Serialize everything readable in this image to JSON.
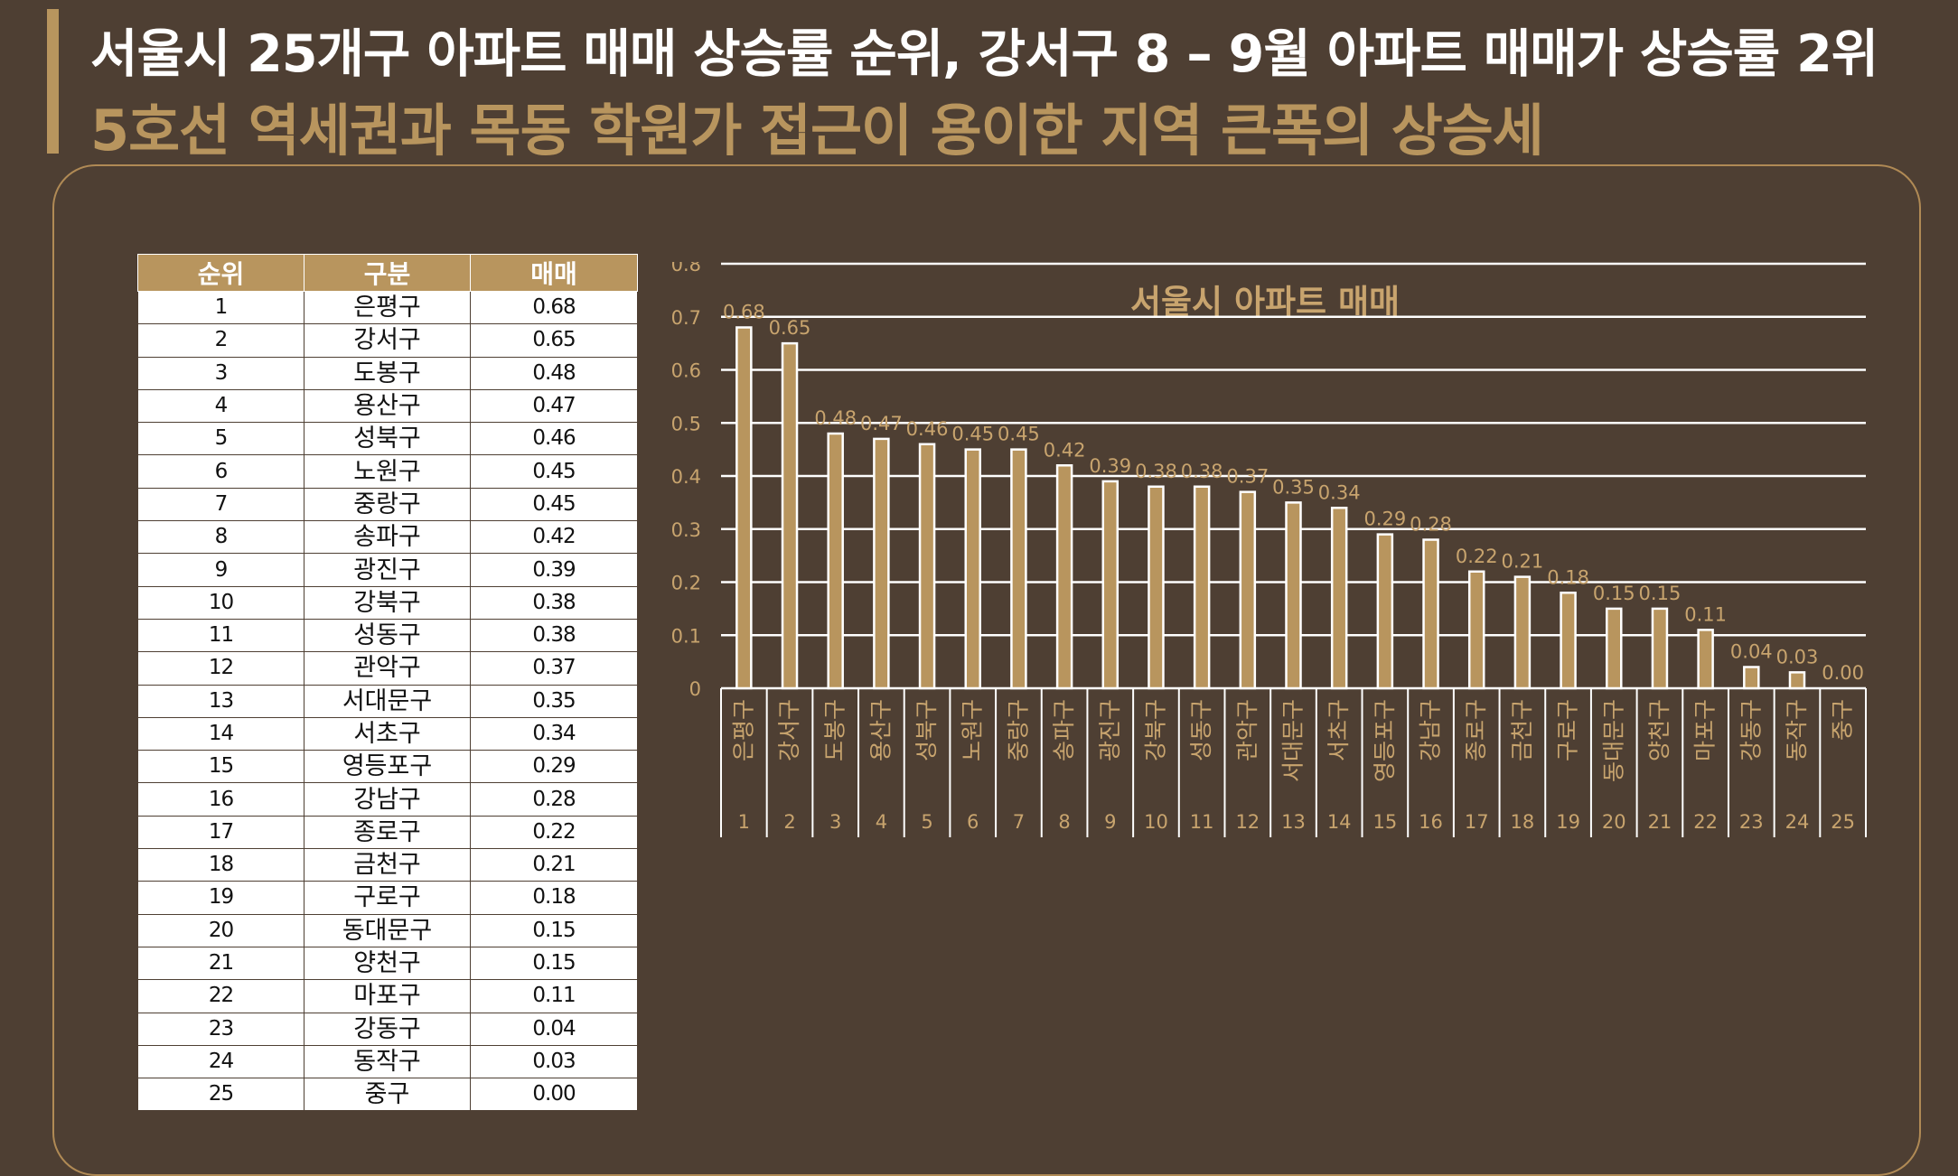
{
  "header": {
    "title": "서울시 25개구 아파트 매매 상승률 순위, 강서구 8 – 9월 아파트 매매가 상승률 2위",
    "subtitle": "5호선 역세권과 목동 학원가 접근이 용이한 지역 큰폭의 상승세"
  },
  "table": {
    "headers": [
      "순위",
      "구분",
      "매매"
    ],
    "rows": [
      [
        "1",
        "은평구",
        "0.68"
      ],
      [
        "2",
        "강서구",
        "0.65"
      ],
      [
        "3",
        "도봉구",
        "0.48"
      ],
      [
        "4",
        "용산구",
        "0.47"
      ],
      [
        "5",
        "성북구",
        "0.46"
      ],
      [
        "6",
        "노원구",
        "0.45"
      ],
      [
        "7",
        "중랑구",
        "0.45"
      ],
      [
        "8",
        "송파구",
        "0.42"
      ],
      [
        "9",
        "광진구",
        "0.39"
      ],
      [
        "10",
        "강북구",
        "0.38"
      ],
      [
        "11",
        "성동구",
        "0.38"
      ],
      [
        "12",
        "관악구",
        "0.37"
      ],
      [
        "13",
        "서대문구",
        "0.35"
      ],
      [
        "14",
        "서초구",
        "0.34"
      ],
      [
        "15",
        "영등포구",
        "0.29"
      ],
      [
        "16",
        "강남구",
        "0.28"
      ],
      [
        "17",
        "종로구",
        "0.22"
      ],
      [
        "18",
        "금천구",
        "0.21"
      ],
      [
        "19",
        "구로구",
        "0.18"
      ],
      [
        "20",
        "동대문구",
        "0.15"
      ],
      [
        "21",
        "양천구",
        "0.15"
      ],
      [
        "22",
        "마포구",
        "0.11"
      ],
      [
        "23",
        "강동구",
        "0.04"
      ],
      [
        "24",
        "동작구",
        "0.03"
      ],
      [
        "25",
        "중구",
        "0.00"
      ]
    ]
  },
  "chart_data": {
    "type": "bar",
    "title": "서울시 아파트 매매",
    "categories": [
      "은평구",
      "강서구",
      "도봉구",
      "용산구",
      "성북구",
      "노원구",
      "중랑구",
      "송파구",
      "광진구",
      "강북구",
      "성동구",
      "관악구",
      "서대문구",
      "서초구",
      "영등포구",
      "강남구",
      "종로구",
      "금천구",
      "구로구",
      "동대문구",
      "양천구",
      "마포구",
      "강동구",
      "동작구",
      "중구"
    ],
    "ranks": [
      "1",
      "2",
      "3",
      "4",
      "5",
      "6",
      "7",
      "8",
      "9",
      "10",
      "11",
      "12",
      "13",
      "14",
      "15",
      "16",
      "17",
      "18",
      "19",
      "20",
      "21",
      "22",
      "23",
      "24",
      "25"
    ],
    "values": [
      0.68,
      0.65,
      0.48,
      0.47,
      0.46,
      0.45,
      0.45,
      0.42,
      0.39,
      0.38,
      0.38,
      0.37,
      0.35,
      0.34,
      0.29,
      0.28,
      0.22,
      0.21,
      0.18,
      0.15,
      0.15,
      0.11,
      0.04,
      0.03,
      0.0
    ],
    "value_labels": [
      "0.68",
      "0.65",
      "0.48",
      "0.47",
      "0.46",
      "0.45",
      "0.45",
      "0.42",
      "0.39",
      "0.38",
      "0.38",
      "0.37",
      "0.35",
      "0.34",
      "0.29",
      "0.28",
      "0.22",
      "0.21",
      "0.18",
      "0.15",
      "0.15",
      "0.11",
      "0.04",
      "0.03",
      "0.00"
    ],
    "yticks": [
      "0",
      "0.1",
      "0.2",
      "0.3",
      "0.4",
      "0.5",
      "0.6",
      "0.7",
      "0.8"
    ],
    "ylim": [
      0,
      0.8
    ],
    "grid": true,
    "legend": "none",
    "bar_color": "#b8955e",
    "bar_outline": "#ffffff",
    "label_color": "#c8a46e"
  }
}
